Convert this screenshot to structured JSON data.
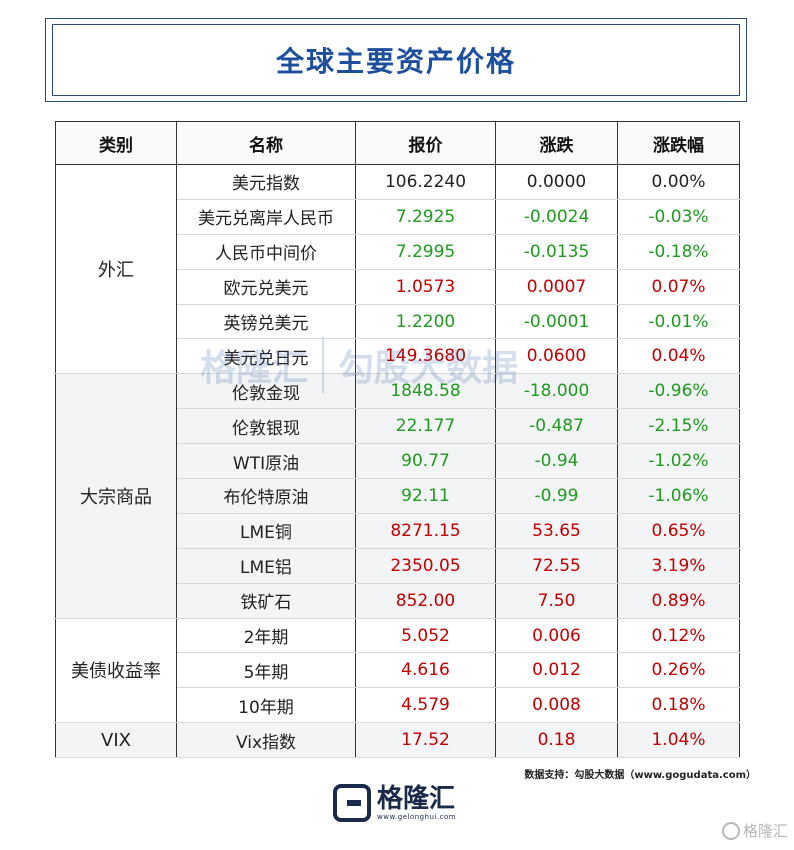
{
  "title": "全球主要资产价格",
  "headers": [
    "类别",
    "名称",
    "报价",
    "涨跌",
    "涨跌幅"
  ],
  "groups": [
    {
      "category": "外汇",
      "rows": [
        {
          "name": "美元指数",
          "price": "106.2240",
          "change": "0.0000",
          "pct": "0.00%",
          "dir": "flat"
        },
        {
          "name": "美元兑离岸人民币",
          "price": "7.2925",
          "change": "-0.0024",
          "pct": "-0.03%",
          "dir": "down"
        },
        {
          "name": "人民币中间价",
          "price": "7.2995",
          "change": "-0.0135",
          "pct": "-0.18%",
          "dir": "down"
        },
        {
          "name": "欧元兑美元",
          "price": "1.0573",
          "change": "0.0007",
          "pct": "0.07%",
          "dir": "up"
        },
        {
          "name": "英镑兑美元",
          "price": "1.2200",
          "change": "-0.0001",
          "pct": "-0.01%",
          "dir": "down"
        },
        {
          "name": "美元兑日元",
          "price": "149.3680",
          "change": "0.0600",
          "pct": "0.04%",
          "dir": "up"
        }
      ]
    },
    {
      "category": "大宗商品",
      "rows": [
        {
          "name": "伦敦金现",
          "price": "1848.58",
          "change": "-18.000",
          "pct": "-0.96%",
          "dir": "down"
        },
        {
          "name": "伦敦银现",
          "price": "22.177",
          "change": "-0.487",
          "pct": "-2.15%",
          "dir": "down"
        },
        {
          "name": "WTI原油",
          "price": "90.77",
          "change": "-0.94",
          "pct": "-1.02%",
          "dir": "down"
        },
        {
          "name": "布伦特原油",
          "price": "92.11",
          "change": "-0.99",
          "pct": "-1.06%",
          "dir": "down"
        },
        {
          "name": "LME铜",
          "price": "8271.15",
          "change": "53.65",
          "pct": "0.65%",
          "dir": "up"
        },
        {
          "name": "LME铝",
          "price": "2350.05",
          "change": "72.55",
          "pct": "3.19%",
          "dir": "up"
        },
        {
          "name": "铁矿石",
          "price": "852.00",
          "change": "7.50",
          "pct": "0.89%",
          "dir": "up"
        }
      ]
    },
    {
      "category": "美债收益率",
      "rows": [
        {
          "name": "2年期",
          "price": "5.052",
          "change": "0.006",
          "pct": "0.12%",
          "dir": "up"
        },
        {
          "name": "5年期",
          "price": "4.616",
          "change": "0.012",
          "pct": "0.26%",
          "dir": "up"
        },
        {
          "name": "10年期",
          "price": "4.579",
          "change": "0.008",
          "pct": "0.18%",
          "dir": "up"
        }
      ]
    },
    {
      "category": "VIX",
      "rows": [
        {
          "name": "Vix指数",
          "price": "17.52",
          "change": "0.18",
          "pct": "1.04%",
          "dir": "up"
        }
      ]
    }
  ],
  "source": "数据支持：勾股大数据（www.gogudata.com）",
  "footer_logo": {
    "name": "格隆汇",
    "url": "www.gelonghui.com"
  },
  "watermark": {
    "left": "格隆汇",
    "left_url": "gelonghui.com",
    "right": "勾股大数据",
    "right_url": "www.gogudata.com"
  },
  "corner_watermark": "格隆汇",
  "colors": {
    "up": "#c00000",
    "down": "#1e9a1e",
    "title": "#1d4f9c"
  }
}
